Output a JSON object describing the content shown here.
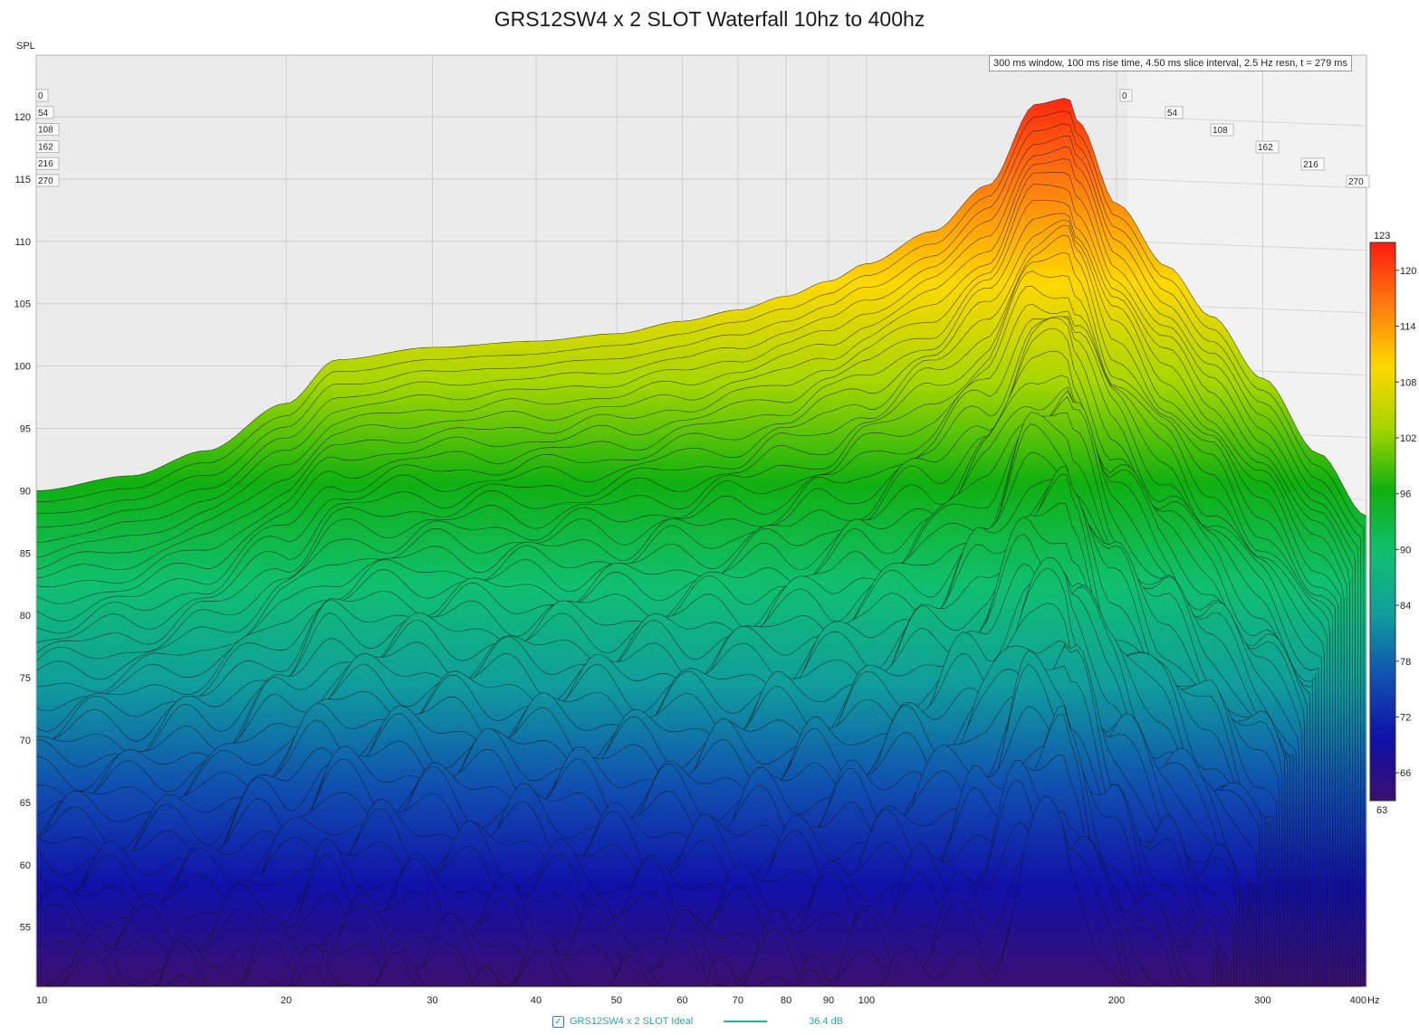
{
  "chart_data": {
    "type": "area",
    "title": "GRS12SW4 x 2 SLOT Waterfall 10hz to 400hz",
    "ylabel": "SPL",
    "xlabel": "Hz",
    "x_scale": "log",
    "x_range": [
      10,
      400
    ],
    "y_range": [
      50,
      125
    ],
    "x_ticks": [
      "10",
      "20",
      "30",
      "40",
      "50",
      "60",
      "70",
      "80",
      "90",
      "100",
      "200",
      "300",
      "400"
    ],
    "y_ticks": [
      "55",
      "60",
      "65",
      "70",
      "75",
      "80",
      "85",
      "90",
      "95",
      "100",
      "105",
      "110",
      "115",
      "120"
    ],
    "time_ticks_ms": [
      "0",
      "54",
      "108",
      "162",
      "216",
      "270"
    ],
    "info": "300 ms window, 100 ms rise time, 4.50 ms slice interval, 2.5 Hz resn, t = 279 ms",
    "colorbar": {
      "min_label": "63",
      "max_label": "123",
      "ticks": [
        "120",
        "114",
        "108",
        "102",
        "96",
        "90",
        "84",
        "78",
        "72",
        "66"
      ],
      "colors": [
        "#ff1a10",
        "#ff7a10",
        "#ffd800",
        "#a6d600",
        "#10b010",
        "#10c070",
        "#109d9d",
        "#1050b0",
        "#1010a8",
        "#3a1070"
      ]
    },
    "first_slice": {
      "freq_hz": [
        10,
        13,
        16,
        20,
        23,
        30,
        40,
        50,
        60,
        70,
        80,
        90,
        100,
        120,
        140,
        160,
        175,
        180,
        200,
        230,
        260,
        300,
        350,
        400
      ],
      "spl_db": [
        90.0,
        91.2,
        93.2,
        97.0,
        100.5,
        101.5,
        102.0,
        102.6,
        103.6,
        104.5,
        105.6,
        106.8,
        108.2,
        110.8,
        114.5,
        121.0,
        121.5,
        119.5,
        113.0,
        108.0,
        104.0,
        99.0,
        93.0,
        88.0
      ]
    },
    "series": [
      {
        "name": "GRS12SW4 x 2 SLOT Ideal",
        "value_label": "36.4 dB",
        "color": "#19b7a4"
      }
    ]
  }
}
